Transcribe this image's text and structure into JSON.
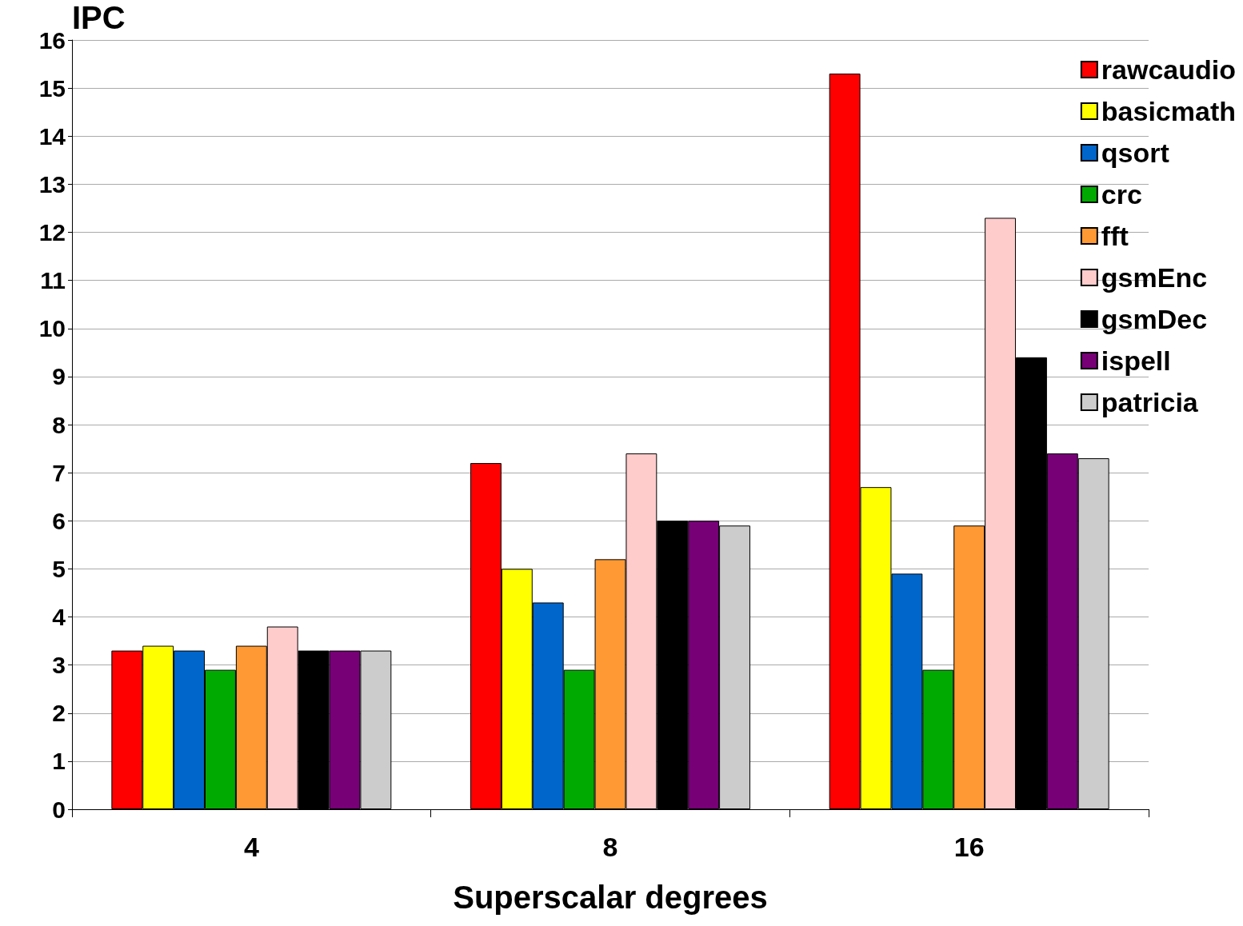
{
  "chart_data": {
    "type": "bar",
    "ylabel": "IPC",
    "xlabel": "Superscalar degrees",
    "categories": [
      "4",
      "8",
      "16"
    ],
    "ylim": [
      0,
      16
    ],
    "yticks": [
      0,
      1,
      2,
      3,
      4,
      5,
      6,
      7,
      8,
      9,
      10,
      11,
      12,
      13,
      14,
      15,
      16
    ],
    "grid": "y",
    "legend": "top right",
    "series": [
      {
        "name": "rawcaudio",
        "color": "#ff0000",
        "values": [
          3.3,
          7.2,
          15.3
        ]
      },
      {
        "name": "basicmath",
        "color": "#ffff00",
        "values": [
          3.4,
          5.0,
          6.7
        ]
      },
      {
        "name": "qsort",
        "color": "#0066cc",
        "values": [
          3.3,
          4.3,
          4.9
        ]
      },
      {
        "name": "crc",
        "color": "#00aa00",
        "values": [
          2.9,
          2.9,
          2.9
        ]
      },
      {
        "name": "fft",
        "color": "#ff9933",
        "values": [
          3.4,
          5.2,
          5.9
        ]
      },
      {
        "name": "gsmEnc",
        "color": "#ffcccc",
        "values": [
          3.8,
          7.4,
          12.3
        ]
      },
      {
        "name": "gsmDec",
        "color": "#000000",
        "values": [
          3.3,
          6.0,
          9.4
        ]
      },
      {
        "name": "ispell",
        "color": "#770077",
        "values": [
          3.3,
          6.0,
          7.4
        ]
      },
      {
        "name": "patricia",
        "color": "#cccccc",
        "values": [
          3.3,
          5.9,
          7.3
        ]
      }
    ]
  }
}
